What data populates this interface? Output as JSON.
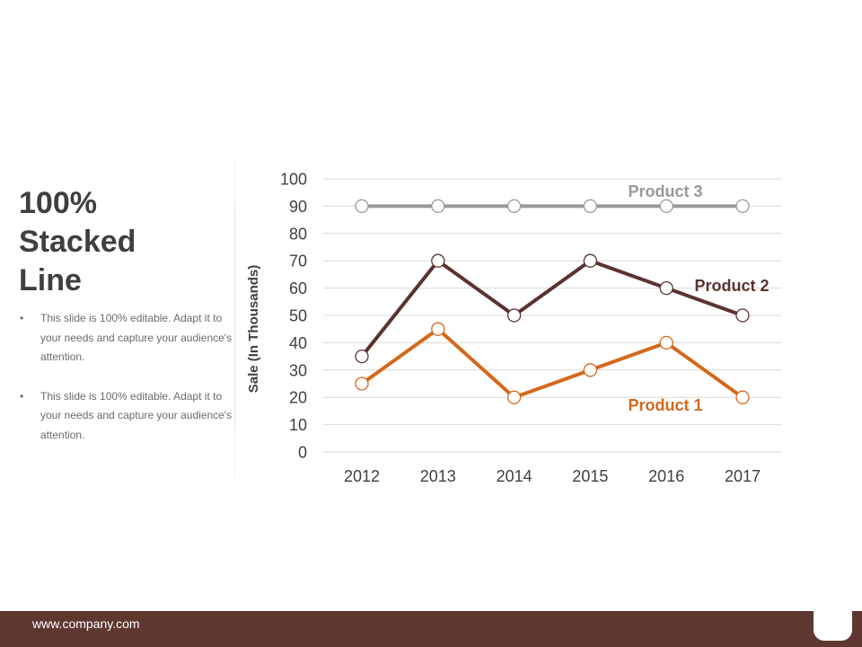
{
  "slide": {
    "title": "100%\nStacked\nLine",
    "bullets": [
      "This slide is 100% editable. Adapt it to your needs and capture your audience's attention.",
      "This slide is 100% editable. Adapt it to your needs and capture your audience's attention."
    ],
    "bullet_symbol": "•",
    "footer_url": "www.company.com"
  },
  "colors": {
    "product1": "#d3691c",
    "product2": "#5a3330",
    "product3": "#999999",
    "grid": "#d9d9d9",
    "text": "#404040",
    "footer": "#5e3830"
  },
  "chart_data": {
    "type": "line",
    "categories": [
      "2012",
      "2013",
      "2014",
      "2015",
      "2016",
      "2017"
    ],
    "series": [
      {
        "name": "Product 3",
        "values": [
          90,
          90,
          90,
          90,
          90,
          90
        ],
        "color": "#999999"
      },
      {
        "name": "Product 2",
        "values": [
          35,
          70,
          50,
          70,
          60,
          50
        ],
        "color": "#5a3330"
      },
      {
        "name": "Product 1",
        "values": [
          25,
          45,
          20,
          30,
          40,
          20
        ],
        "color": "#d3691c"
      }
    ],
    "ylabel": "Sale (In Thousands)",
    "xlabel": "",
    "ylim": [
      0,
      100
    ],
    "yticks": [
      0,
      10,
      20,
      30,
      40,
      50,
      60,
      70,
      80,
      90,
      100
    ],
    "grid": true
  }
}
